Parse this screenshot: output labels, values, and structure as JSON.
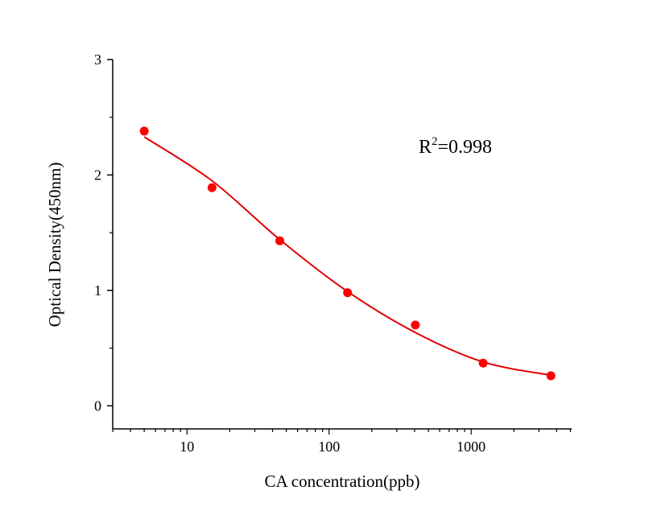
{
  "chart_data": {
    "type": "scatter",
    "xlabel": "CA concentration(ppb)",
    "ylabel": "Optical Density(450nm)",
    "x_scale": "log",
    "xlim": [
      3,
      5100
    ],
    "ylim": [
      -0.2,
      3
    ],
    "x_ticks": [
      10,
      100,
      1000
    ],
    "x_tick_labels": [
      "10",
      "100",
      "1000"
    ],
    "y_ticks": [
      0,
      1,
      2,
      3
    ],
    "y_tick_labels": [
      "0",
      "1",
      "2",
      "3"
    ],
    "y_minor_ticks": [
      0.5,
      1.5,
      2.5
    ],
    "grid": false,
    "annotation": {
      "base": "R",
      "sup": "2",
      "rest": "=0.998"
    },
    "series": [
      {
        "x": [
          5,
          15,
          45,
          135,
          405,
          1215,
          3645
        ],
        "y": [
          2.38,
          1.89,
          1.43,
          0.98,
          0.7,
          0.37,
          0.26
        ],
        "color": "#ff0000",
        "marker": "circle"
      }
    ],
    "fit_curve": {
      "x": [
        5,
        15,
        45,
        135,
        405,
        1215,
        3645
      ],
      "y": [
        2.33,
        1.95,
        1.44,
        0.99,
        0.635,
        0.38,
        0.265
      ],
      "color": "#e00000"
    }
  }
}
